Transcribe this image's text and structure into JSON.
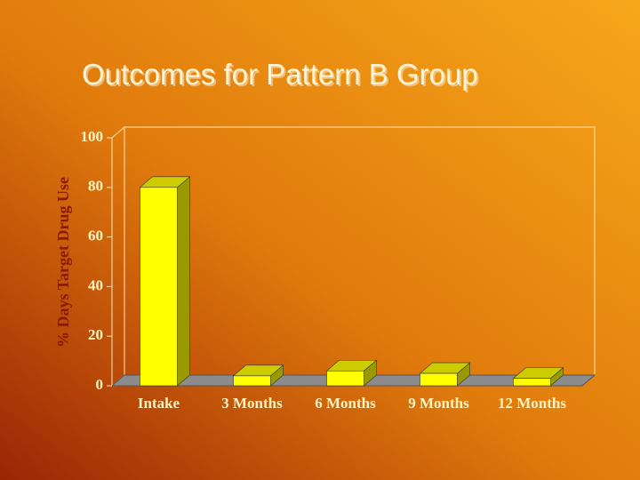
{
  "chart_data": {
    "type": "bar3d",
    "title": "Outcomes for Pattern B Group",
    "y_label": "% Days Target Drug Use",
    "categories": [
      "Intake",
      "3 Months",
      "6 Months",
      "9 Months",
      "12 Months"
    ],
    "values": [
      80,
      4,
      6,
      5,
      3
    ],
    "color": "#ffff00",
    "ylim": [
      0,
      100
    ],
    "yticks": [
      0,
      20,
      40,
      60,
      80,
      100
    ],
    "grid": false
  }
}
